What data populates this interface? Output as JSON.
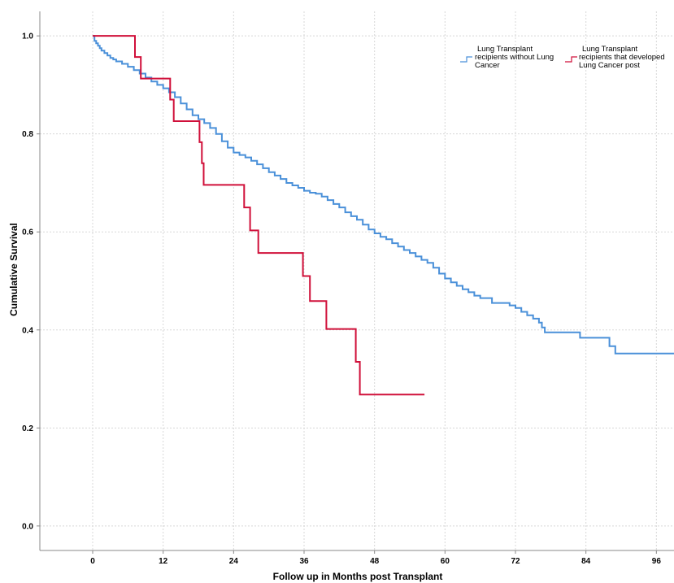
{
  "chart_data": {
    "type": "line",
    "title": "",
    "xlabel": "Follow up in Months post Transplant",
    "ylabel": "Cumulative Survival",
    "xlim": [
      -9,
      99
    ],
    "ylim": [
      -0.05,
      1.05
    ],
    "x_ticks": [
      "0",
      "12",
      "24",
      "36",
      "48",
      "60",
      "72",
      "84",
      "96"
    ],
    "y_ticks": [
      "0.0",
      "0.2",
      "0.4",
      "0.6",
      "0.8",
      "1.0"
    ],
    "grid": true,
    "legend_position": "top-right",
    "step": true,
    "series": [
      {
        "name": "Lung Transplant recipients without Lung Cancer",
        "color": "#4a90d9",
        "x": [
          0,
          0.3,
          0.6,
          0.9,
          1.2,
          1.5,
          2.0,
          2.5,
          3.0,
          3.5,
          4.0,
          5.0,
          6.0,
          7.0,
          8.0,
          9.0,
          10.0,
          11.0,
          12.0,
          13.0,
          14.0,
          15.0,
          16.0,
          17.0,
          18.0,
          19.0,
          20.0,
          21.0,
          22.0,
          23.0,
          24.0,
          25.0,
          26.0,
          27.0,
          28.0,
          29.0,
          30.0,
          31.0,
          32.0,
          33.0,
          34.0,
          35.0,
          36.0,
          37.0,
          38.0,
          39.0,
          40.0,
          41.0,
          42.0,
          43.0,
          44.0,
          45.0,
          46.0,
          47.0,
          48.0,
          49.0,
          50.0,
          51.0,
          52.0,
          53.0,
          54.0,
          55.0,
          56.0,
          57.0,
          58.0,
          59.0,
          60.0,
          61.0,
          62.0,
          63.0,
          64.0,
          65.0,
          66.0,
          68.0,
          71.0,
          72.0,
          73.0,
          74.0,
          75.0,
          76.0,
          76.5,
          77.0,
          83.0,
          88.0,
          89.0,
          100.0
        ],
        "values": [
          1.0,
          0.99,
          0.985,
          0.98,
          0.975,
          0.97,
          0.965,
          0.96,
          0.955,
          0.952,
          0.948,
          0.943,
          0.937,
          0.93,
          0.923,
          0.915,
          0.907,
          0.9,
          0.893,
          0.885,
          0.875,
          0.862,
          0.85,
          0.838,
          0.83,
          0.822,
          0.812,
          0.8,
          0.785,
          0.772,
          0.762,
          0.757,
          0.752,
          0.745,
          0.738,
          0.73,
          0.722,
          0.715,
          0.708,
          0.7,
          0.695,
          0.69,
          0.684,
          0.68,
          0.678,
          0.672,
          0.665,
          0.657,
          0.65,
          0.64,
          0.632,
          0.625,
          0.615,
          0.605,
          0.597,
          0.59,
          0.585,
          0.577,
          0.57,
          0.563,
          0.557,
          0.55,
          0.543,
          0.537,
          0.527,
          0.515,
          0.505,
          0.497,
          0.49,
          0.483,
          0.477,
          0.47,
          0.465,
          0.455,
          0.45,
          0.445,
          0.437,
          0.43,
          0.423,
          0.415,
          0.405,
          0.395,
          0.384,
          0.367,
          0.352,
          0.352
        ]
      },
      {
        "name": "Lung Transplant recipients that developed Lung Cancer post",
        "color": "#d0103a",
        "x": [
          0,
          7.2,
          8.2,
          13.2,
          13.8,
          14.2,
          18.2,
          18.6,
          18.9,
          25.8,
          26.8,
          28.2,
          35.8,
          37.0,
          39.8,
          44.8,
          45.5,
          56.5
        ],
        "values": [
          1.0,
          0.957,
          0.913,
          0.87,
          0.826,
          0.826,
          0.783,
          0.74,
          0.696,
          0.65,
          0.603,
          0.557,
          0.51,
          0.459,
          0.402,
          0.335,
          0.268,
          0.268
        ]
      }
    ]
  }
}
